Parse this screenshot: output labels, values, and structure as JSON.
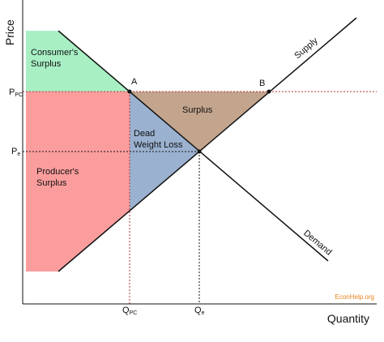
{
  "axes": {
    "y_label": "Price",
    "x_label": "Quantity"
  },
  "price_labels": {
    "price_control": {
      "main": "P",
      "sub": "PC"
    },
    "equilibrium": {
      "main": "P",
      "sub": "e"
    }
  },
  "quantity_labels": {
    "price_control": {
      "main": "Q",
      "sub": "PC"
    },
    "equilibrium": {
      "main": "Q",
      "sub": "e"
    }
  },
  "curves": {
    "supply": "Supply",
    "demand": "Demand"
  },
  "points": {
    "a": "A",
    "b": "B"
  },
  "regions": {
    "consumer_surplus": [
      "Consumer's",
      "Surplus"
    ],
    "producer_surplus": [
      "Producer's",
      "Surplus"
    ],
    "dead_weight_loss": [
      "Dead",
      "Weight Loss"
    ],
    "surplus": "Surplus"
  },
  "source": "EconHelp.org"
}
